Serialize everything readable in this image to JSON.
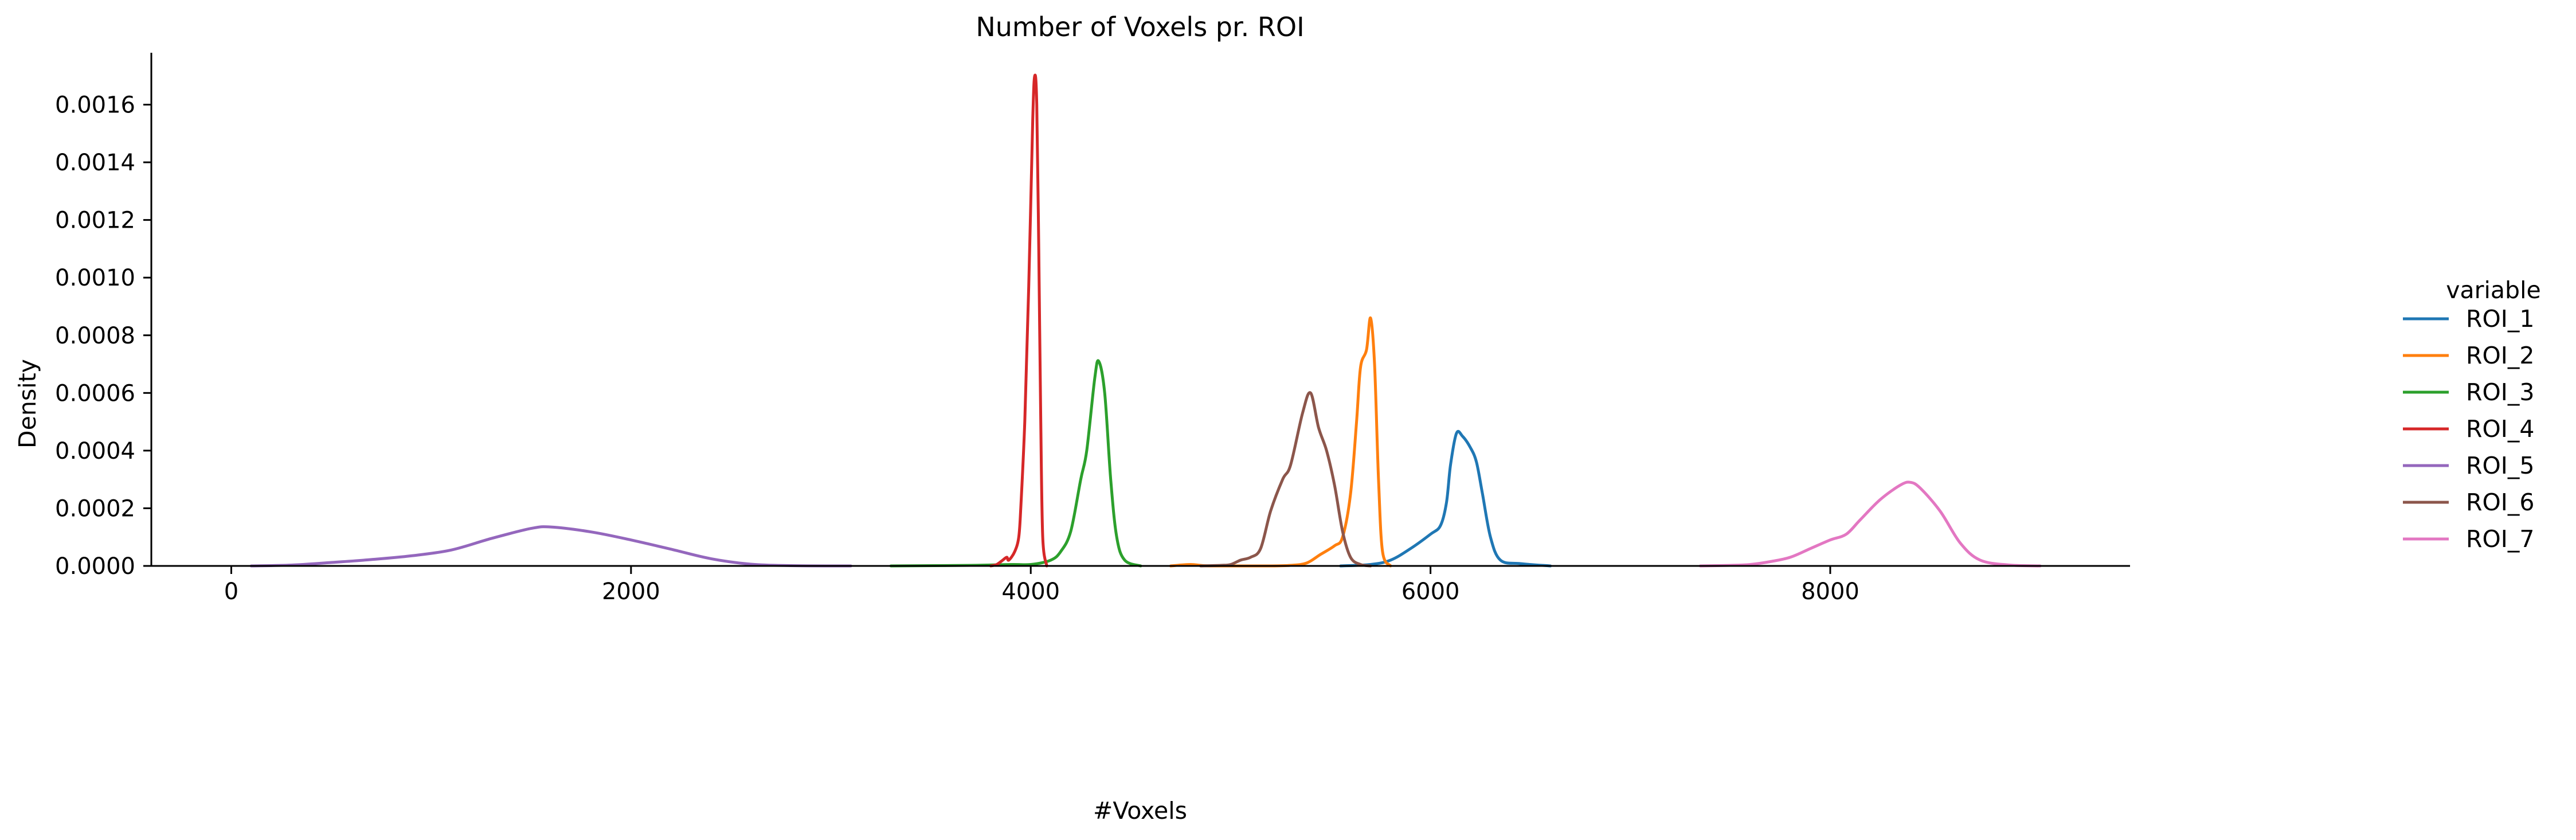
{
  "chart_data": {
    "type": "line",
    "title": "Number of Voxels pr. ROI",
    "xlabel": "#Voxels",
    "ylabel": "Density",
    "xlim": [
      -400,
      9500
    ],
    "ylim": [
      0,
      0.00178
    ],
    "xticks": [
      0,
      2000,
      4000,
      6000,
      8000
    ],
    "yticks": [
      0,
      0.0002,
      0.0004,
      0.0006,
      0.0008,
      0.001,
      0.0012,
      0.0014,
      0.0016
    ],
    "xtick_labels": [
      "0",
      "2000",
      "4000",
      "6000",
      "8000"
    ],
    "ytick_labels": [
      "0.0000",
      "0.0002",
      "0.0004",
      "0.0006",
      "0.0008",
      "0.0010",
      "0.0012",
      "0.0014",
      "0.0016"
    ],
    "grid": false,
    "legend": {
      "title": "variable",
      "placement": "outside-right"
    },
    "series": [
      {
        "name": "ROI_1",
        "color": "#1f77b4",
        "points": [
          [
            5550,
            0
          ],
          [
            5700,
            5e-06
          ],
          [
            5800,
            2e-05
          ],
          [
            5900,
            6e-05
          ],
          [
            6000,
            0.00011
          ],
          [
            6050,
            0.00014
          ],
          [
            6080,
            0.00022
          ],
          [
            6100,
            0.00035
          ],
          [
            6130,
            0.00046
          ],
          [
            6160,
            0.00045
          ],
          [
            6200,
            0.00041
          ],
          [
            6230,
            0.00036
          ],
          [
            6260,
            0.00025
          ],
          [
            6300,
            0.0001
          ],
          [
            6350,
            2e-05
          ],
          [
            6450,
            8e-06
          ],
          [
            6600,
            0
          ]
        ]
      },
      {
        "name": "ROI_2",
        "color": "#ff7f0e",
        "points": [
          [
            4700,
            0
          ],
          [
            4800,
            5e-06
          ],
          [
            4900,
            0
          ],
          [
            5200,
            0
          ],
          [
            5300,
            2e-06
          ],
          [
            5380,
            1e-05
          ],
          [
            5450,
            4e-05
          ],
          [
            5520,
            7e-05
          ],
          [
            5560,
            0.0001
          ],
          [
            5600,
            0.00025
          ],
          [
            5630,
            0.0005
          ],
          [
            5650,
            0.00069
          ],
          [
            5680,
            0.00075
          ],
          [
            5700,
            0.00086
          ],
          [
            5720,
            0.0007
          ],
          [
            5740,
            0.0003
          ],
          [
            5760,
            5e-05
          ],
          [
            5800,
            0
          ]
        ]
      },
      {
        "name": "ROI_3",
        "color": "#2ca02c",
        "points": [
          [
            3300,
            0
          ],
          [
            3700,
            2e-06
          ],
          [
            3900,
            5e-06
          ],
          [
            4000,
            5e-06
          ],
          [
            4100,
            2e-05
          ],
          [
            4150,
            5e-05
          ],
          [
            4200,
            0.00012
          ],
          [
            4250,
            0.0003
          ],
          [
            4280,
            0.0004
          ],
          [
            4320,
            0.00065
          ],
          [
            4340,
            0.00071
          ],
          [
            4370,
            0.0006
          ],
          [
            4400,
            0.0003
          ],
          [
            4430,
            0.0001
          ],
          [
            4470,
            2e-05
          ],
          [
            4550,
            0
          ]
        ]
      },
      {
        "name": "ROI_4",
        "color": "#d62728",
        "points": [
          [
            3800,
            0
          ],
          [
            3830,
            5e-06
          ],
          [
            3860,
            2e-05
          ],
          [
            3880,
            3e-05
          ],
          [
            3890,
            2e-05
          ],
          [
            3920,
            5e-05
          ],
          [
            3940,
            0.0001
          ],
          [
            3950,
            0.0002
          ],
          [
            3970,
            0.0005
          ],
          [
            3990,
            0.00097
          ],
          [
            4010,
            0.00155
          ],
          [
            4020,
            0.0017
          ],
          [
            4030,
            0.0016
          ],
          [
            4040,
            0.0011
          ],
          [
            4050,
            0.0005
          ],
          [
            4060,
            0.0001
          ],
          [
            4080,
            0
          ]
        ]
      },
      {
        "name": "ROI_5",
        "color": "#9467bd",
        "points": [
          [
            100,
            0
          ],
          [
            300,
            3e-06
          ],
          [
            500,
            1.2e-05
          ],
          [
            700,
            2.2e-05
          ],
          [
            900,
            3.5e-05
          ],
          [
            1100,
            5.5e-05
          ],
          [
            1300,
            9.5e-05
          ],
          [
            1500,
            0.00013
          ],
          [
            1600,
            0.000135
          ],
          [
            1800,
            0.000118
          ],
          [
            2000,
            9e-05
          ],
          [
            2200,
            5.8e-05
          ],
          [
            2400,
            2.5e-05
          ],
          [
            2600,
            6e-06
          ],
          [
            2800,
            1e-06
          ],
          [
            3100,
            0
          ]
        ]
      },
      {
        "name": "ROI_6",
        "color": "#8c564b",
        "points": [
          [
            4850,
            0
          ],
          [
            4950,
            2e-06
          ],
          [
            5000,
            5e-06
          ],
          [
            5050,
            2e-05
          ],
          [
            5100,
            3e-05
          ],
          [
            5150,
            6e-05
          ],
          [
            5200,
            0.00019
          ],
          [
            5260,
            0.0003
          ],
          [
            5300,
            0.00035
          ],
          [
            5360,
            0.00053
          ],
          [
            5400,
            0.0006
          ],
          [
            5440,
            0.00048
          ],
          [
            5480,
            0.0004
          ],
          [
            5520,
            0.00028
          ],
          [
            5560,
            0.00012
          ],
          [
            5600,
            3e-05
          ],
          [
            5650,
            5e-06
          ],
          [
            5700,
            0
          ]
        ]
      },
      {
        "name": "ROI_7",
        "color": "#e377c2",
        "points": [
          [
            7350,
            0
          ],
          [
            7500,
            2e-06
          ],
          [
            7600,
            5e-06
          ],
          [
            7700,
            1.5e-05
          ],
          [
            7800,
            3e-05
          ],
          [
            7900,
            6e-05
          ],
          [
            8000,
            9e-05
          ],
          [
            8080,
            0.00011
          ],
          [
            8150,
            0.00016
          ],
          [
            8250,
            0.00023
          ],
          [
            8350,
            0.00028
          ],
          [
            8400,
            0.00029
          ],
          [
            8450,
            0.00027
          ],
          [
            8550,
            0.00019
          ],
          [
            8650,
            8e-05
          ],
          [
            8750,
            2e-05
          ],
          [
            8900,
            3e-06
          ],
          [
            9050,
            0
          ]
        ]
      }
    ]
  }
}
